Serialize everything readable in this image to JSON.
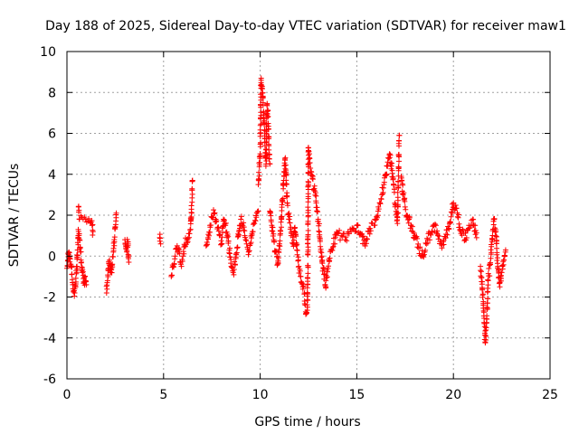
{
  "chart_data": {
    "type": "scatter",
    "title": "Day 188 of 2025, Sidereal Day-to-day VTEC variation (SDTVAR) for receiver maw1",
    "xlabel": "GPS time / hours",
    "ylabel": "SDTVAR / TECUs",
    "xlim": [
      0,
      25
    ],
    "ylim": [
      -6,
      10
    ],
    "xticks": [
      0,
      5,
      10,
      15,
      20,
      25
    ],
    "yticks": [
      -6,
      -4,
      -2,
      0,
      2,
      4,
      6,
      8,
      10
    ],
    "grid": true,
    "marker": "+",
    "colors": {
      "series": "#ff0000",
      "grid": "#a0a0a0",
      "axis": "#000000"
    },
    "series": [
      {
        "name": "SDTVAR",
        "segments": [
          {
            "x": [
              0.0,
              0.05,
              0.1,
              0.15,
              0.2,
              0.25,
              0.3,
              0.35,
              0.4,
              0.45,
              0.5,
              0.55,
              0.6,
              0.65,
              0.7,
              0.75,
              0.8,
              0.85,
              0.9,
              0.95,
              1.0
            ],
            "y": [
              -0.6,
              -0.2,
              0.2,
              0.0,
              -0.4,
              -0.9,
              -1.4,
              -1.7,
              -1.8,
              -1.5,
              -0.8,
              0.3,
              1.2,
              0.8,
              0.2,
              -0.3,
              -0.8,
              -1.1,
              -1.3,
              -1.2,
              -1.4
            ]
          },
          {
            "x": [
              0.6,
              0.65,
              1.2,
              1.3,
              1.35
            ],
            "y": [
              2.4,
              1.8,
              1.7,
              1.5,
              1.2
            ]
          },
          {
            "x": [
              2.05,
              2.1,
              2.15,
              2.2,
              2.25,
              2.3,
              2.35,
              2.4,
              2.45,
              2.5,
              2.55
            ],
            "y": [
              -1.8,
              -1.2,
              -0.6,
              -0.2,
              -0.5,
              -0.8,
              -0.4,
              0.2,
              0.8,
              1.4,
              2.1
            ]
          },
          {
            "x": [
              3.0,
              3.05,
              3.1,
              3.15,
              3.2
            ],
            "y": [
              0.8,
              0.5,
              0.2,
              0.7,
              -0.3
            ]
          },
          {
            "x": [
              4.8,
              4.85
            ],
            "y": [
              0.9,
              0.6
            ]
          },
          {
            "x": [
              5.4,
              5.5,
              5.6,
              5.7,
              5.8,
              5.9,
              6.0,
              6.1,
              6.2,
              6.3,
              6.4,
              6.5
            ],
            "y": [
              -1.0,
              -0.5,
              0.0,
              0.5,
              0.2,
              -0.4,
              0.0,
              0.5,
              0.8,
              1.1,
              1.3,
              3.7
            ]
          },
          {
            "x": [
              7.2,
              7.3,
              7.4,
              7.5,
              7.6,
              7.7,
              7.8,
              7.9,
              8.0,
              8.1,
              8.2,
              8.3,
              8.4,
              8.5,
              8.6,
              8.7,
              8.8,
              8.9,
              9.0,
              9.1,
              9.2,
              9.3,
              9.4,
              9.5,
              9.6,
              9.7,
              9.8,
              9.9
            ],
            "y": [
              0.5,
              0.9,
              1.5,
              1.9,
              2.1,
              1.8,
              1.4,
              1.0,
              0.6,
              1.8,
              1.5,
              1.0,
              0.3,
              -0.5,
              -0.8,
              -0.4,
              0.4,
              1.2,
              1.8,
              1.5,
              1.0,
              0.6,
              0.2,
              0.6,
              1.2,
              1.6,
              1.9,
              2.2
            ]
          },
          {
            "x": [
              9.9,
              10.0,
              10.05,
              10.1,
              10.15,
              10.2,
              10.25,
              10.3,
              10.35,
              10.4,
              10.45,
              10.5
            ],
            "y": [
              3.5,
              5.0,
              8.6,
              8.3,
              7.5,
              6.5,
              5.4,
              4.5,
              7.4,
              6.8,
              5.4,
              4.5
            ]
          },
          {
            "x": [
              10.5,
              10.6,
              10.7,
              10.8,
              10.9,
              11.0,
              11.1,
              11.2,
              11.3,
              11.4,
              11.5,
              11.6,
              11.7,
              11.8,
              11.9,
              12.0,
              12.1,
              12.2,
              12.3
            ],
            "y": [
              2.2,
              1.5,
              0.8,
              0.2,
              -0.4,
              0.6,
              1.8,
              3.5,
              4.8,
              2.6,
              1.8,
              1.0,
              0.6,
              1.4,
              0.3,
              -0.5,
              -1.0,
              -1.5,
              -1.8
            ]
          },
          {
            "x": [
              12.3,
              12.4,
              12.45,
              12.5,
              12.55,
              12.6,
              12.7,
              12.8,
              12.9,
              13.0,
              13.1,
              13.2,
              13.3,
              13.4
            ],
            "y": [
              -2.2,
              -2.8,
              -2.5,
              5.3,
              4.8,
              4.3,
              3.8,
              3.3,
              2.6,
              1.8,
              0.8,
              -0.2,
              -0.9,
              -1.5
            ]
          },
          {
            "x": [
              13.4,
              13.5,
              13.6,
              13.7,
              13.8,
              13.9,
              14.0,
              14.2,
              14.4,
              14.6,
              14.8,
              15.0,
              15.2,
              15.4,
              15.6,
              15.8
            ],
            "y": [
              -1.2,
              -0.6,
              -0.1,
              0.3,
              0.6,
              0.9,
              1.1,
              1.0,
              0.8,
              1.1,
              1.3,
              1.5,
              1.1,
              0.6,
              1.2,
              1.6
            ]
          },
          {
            "x": [
              15.9,
              16.0,
              16.1,
              16.2,
              16.3,
              16.4,
              16.5,
              16.6,
              16.7,
              16.8,
              16.9,
              17.0,
              17.1,
              17.2
            ],
            "y": [
              1.5,
              1.8,
              2.2,
              2.6,
              3.0,
              3.5,
              4.0,
              4.6,
              5.0,
              4.4,
              3.5,
              2.5,
              1.6,
              5.9
            ]
          },
          {
            "x": [
              17.3,
              17.4,
              17.5,
              17.6,
              17.7,
              17.8,
              17.9,
              18.0,
              18.2,
              18.4,
              18.6,
              18.8,
              19.0,
              19.2,
              19.4,
              19.6,
              19.8,
              20.0,
              20.2,
              20.4,
              20.6,
              20.8,
              21.0,
              21.2
            ],
            "y": [
              3.9,
              3.0,
              2.4,
              2.0,
              1.8,
              1.5,
              1.2,
              1.0,
              0.4,
              0.0,
              0.6,
              1.1,
              1.5,
              1.0,
              0.4,
              0.9,
              1.6,
              2.6,
              2.1,
              1.2,
              0.8,
              1.5,
              1.8,
              0.9
            ]
          },
          {
            "x": [
              21.4,
              21.5,
              21.55,
              21.6,
              21.65,
              21.7,
              21.75,
              21.8,
              21.9,
              22.0,
              22.1,
              22.2,
              22.3,
              22.4,
              22.5,
              22.6,
              22.7
            ],
            "y": [
              -0.5,
              -1.6,
              -2.4,
              -3.3,
              -4.2,
              -3.5,
              -2.6,
              -1.2,
              -0.4,
              0.8,
              1.8,
              1.2,
              -0.5,
              -1.5,
              -0.8,
              -0.2,
              0.3
            ]
          }
        ]
      }
    ]
  }
}
